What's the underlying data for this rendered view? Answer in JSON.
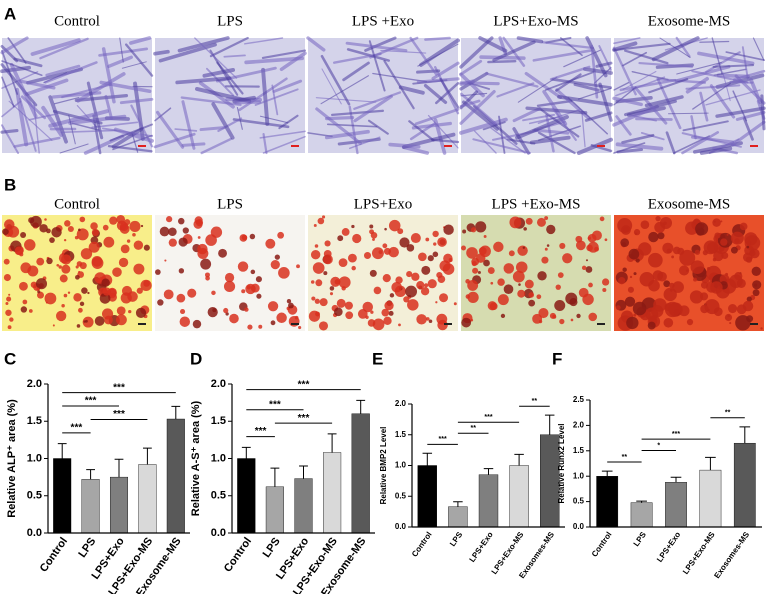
{
  "panel_a": {
    "label": "A",
    "titles": [
      "Control",
      "LPS",
      "LPS +Exo",
      "LPS+Exo-MS",
      "Exosome-MS"
    ]
  },
  "panel_b": {
    "label": "B",
    "titles": [
      "Control",
      "LPS",
      "LPS+Exo",
      "LPS +Exo-MS",
      "Exosome-MS"
    ]
  },
  "chart_data": [
    {
      "type": "bar",
      "panel": "C",
      "ylabel": "Relative ALP⁺ area (%)",
      "categories": [
        "Control",
        "LPS",
        "LPS+Exo",
        "LPS+Exo-MS",
        "Exosome-MS"
      ],
      "values": [
        1.0,
        0.72,
        0.75,
        0.92,
        1.53
      ],
      "errors": [
        0.2,
        0.13,
        0.24,
        0.22,
        0.17
      ],
      "colors": [
        "#000000",
        "#a6a6a6",
        "#7f7f7f",
        "#d9d9d9",
        "#595959"
      ],
      "ylim": [
        0,
        2
      ],
      "yticks": [
        {
          "value": 0,
          "label": "0.0"
        },
        {
          "value": 0.5,
          "label": "0.5"
        },
        {
          "value": 1,
          "label": "1.0"
        },
        {
          "value": 1.5,
          "label": "1.5"
        },
        {
          "value": 2,
          "label": "2.0"
        }
      ],
      "annotations": [
        {
          "label": "***",
          "from": 0,
          "to": 1
        },
        {
          "label": "***",
          "from": 1,
          "to": 3
        },
        {
          "label": "***",
          "from": 0,
          "to": 2
        },
        {
          "label": "***",
          "from": 0,
          "to": 4
        }
      ]
    },
    {
      "type": "bar",
      "panel": "D",
      "ylabel": "Relative A-S⁺ area (%)",
      "categories": [
        "Control",
        "LPS",
        "LPS+Exo",
        "LPS+Exo-MS",
        "Exosome-MS"
      ],
      "values": [
        1.0,
        0.62,
        0.73,
        1.08,
        1.6
      ],
      "errors": [
        0.15,
        0.25,
        0.17,
        0.25,
        0.18
      ],
      "colors": [
        "#000000",
        "#a6a6a6",
        "#7f7f7f",
        "#d9d9d9",
        "#595959"
      ],
      "ylim": [
        0,
        2
      ],
      "yticks": [
        {
          "value": 0,
          "label": "0.0"
        },
        {
          "value": 0.5,
          "label": "0.5"
        },
        {
          "value": 1,
          "label": "1.0"
        },
        {
          "value": 1.5,
          "label": "1.5"
        },
        {
          "value": 2,
          "label": "2.0"
        }
      ],
      "annotations": [
        {
          "label": "***",
          "from": 0,
          "to": 1
        },
        {
          "label": "***",
          "from": 1,
          "to": 3
        },
        {
          "label": "***",
          "from": 0,
          "to": 2
        },
        {
          "label": "***",
          "from": 0,
          "to": 4
        }
      ]
    },
    {
      "type": "bar",
      "panel": "E",
      "ylabel": "Relative BMP2 Level",
      "categories": [
        "Control",
        "LPS",
        "LPS+Exo",
        "LPS+Exo-MS",
        "Exosomes-MS"
      ],
      "values": [
        1.0,
        0.33,
        0.85,
        1.0,
        1.5
      ],
      "errors": [
        0.2,
        0.08,
        0.1,
        0.18,
        0.32
      ],
      "colors": [
        "#000000",
        "#a6a6a6",
        "#7f7f7f",
        "#d9d9d9",
        "#595959"
      ],
      "ylim": [
        0,
        2
      ],
      "yticks": [
        {
          "value": 0,
          "label": "0.0"
        },
        {
          "value": 0.5,
          "label": "0.5"
        },
        {
          "value": 1,
          "label": "1.0"
        },
        {
          "value": 1.5,
          "label": "1.5"
        },
        {
          "value": 2,
          "label": "2.0"
        }
      ],
      "annotations": [
        {
          "label": "***",
          "from": 0,
          "to": 1
        },
        {
          "label": "**",
          "from": 1,
          "to": 2
        },
        {
          "label": "***",
          "from": 1,
          "to": 3
        },
        {
          "label": "**",
          "from": 3,
          "to": 4
        }
      ]
    },
    {
      "type": "bar",
      "panel": "F",
      "ylabel": "Relative Runx2 Level",
      "categories": [
        "Control",
        "LPS",
        "LPS+Exo",
        "LPS+Exo-MS",
        "Exosomes-MS"
      ],
      "values": [
        1.0,
        0.48,
        0.88,
        1.12,
        1.65
      ],
      "errors": [
        0.1,
        0.03,
        0.1,
        0.25,
        0.32
      ],
      "colors": [
        "#000000",
        "#a6a6a6",
        "#7f7f7f",
        "#d9d9d9",
        "#595959"
      ],
      "ylim": [
        0,
        2.5
      ],
      "yticks": [
        {
          "value": 0,
          "label": "0.0"
        },
        {
          "value": 0.5,
          "label": "0.5"
        },
        {
          "value": 1,
          "label": "1.0"
        },
        {
          "value": 1.5,
          "label": "1.5"
        },
        {
          "value": 2,
          "label": "2.0"
        },
        {
          "value": 2.5,
          "label": "2.5"
        }
      ],
      "annotations": [
        {
          "label": "**",
          "from": 0,
          "to": 1
        },
        {
          "label": "*",
          "from": 1,
          "to": 2
        },
        {
          "label": "***",
          "from": 1,
          "to": 3
        },
        {
          "label": "**",
          "from": 3,
          "to": 4
        }
      ]
    }
  ]
}
